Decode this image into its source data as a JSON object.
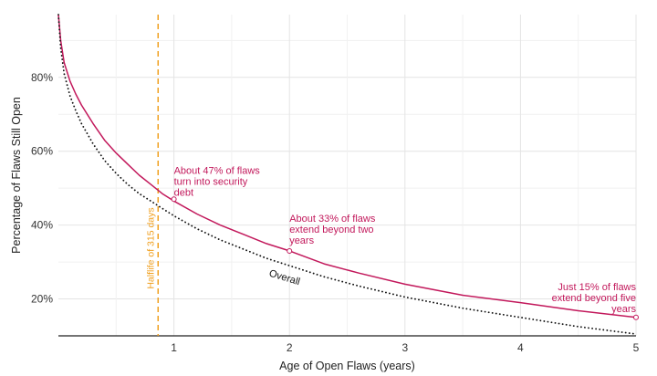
{
  "chart_data": {
    "type": "line",
    "title": "",
    "xlabel": "Age of Open Flaws (years)",
    "ylabel": "Percentage of Flaws Still Open",
    "xlim": [
      0,
      5
    ],
    "ylim": [
      10,
      97
    ],
    "x_ticks": [
      "1",
      "2",
      "3",
      "4",
      "5"
    ],
    "y_ticks": [
      "20%",
      "40%",
      "60%",
      "80%"
    ],
    "grid": true,
    "series": [
      {
        "name": "",
        "color": "#c2185b",
        "style": "solid",
        "x": [
          0,
          0.02,
          0.05,
          0.1,
          0.15,
          0.2,
          0.3,
          0.4,
          0.5,
          0.6,
          0.7,
          0.8,
          0.9,
          1.0,
          1.2,
          1.4,
          1.6,
          1.8,
          2.0,
          2.3,
          2.6,
          3.0,
          3.5,
          4.0,
          4.5,
          5.0
        ],
        "values": [
          97,
          90,
          84,
          79,
          75.5,
          72.5,
          67.5,
          63,
          59.5,
          56.5,
          53.5,
          51,
          48.5,
          46.5,
          43,
          40,
          37.5,
          35,
          33,
          29.5,
          27,
          24,
          21,
          19,
          16.8,
          15
        ]
      },
      {
        "name": "Overall",
        "color": "#111111",
        "style": "dotted",
        "x": [
          0,
          0.02,
          0.05,
          0.1,
          0.15,
          0.2,
          0.3,
          0.4,
          0.5,
          0.6,
          0.7,
          0.8,
          0.9,
          1.0,
          1.2,
          1.4,
          1.6,
          1.8,
          2.0,
          2.3,
          2.6,
          3.0,
          3.5,
          4.0,
          4.5,
          5.0
        ],
        "values": [
          97,
          88,
          81,
          75,
          71,
          67.5,
          62,
          57.5,
          54,
          51,
          48.5,
          46.5,
          44.5,
          42.5,
          39,
          36,
          33.5,
          31,
          29,
          26,
          23.5,
          20.5,
          17.5,
          15,
          12.5,
          10.5
        ]
      }
    ],
    "vline": {
      "x": 0.863,
      "color": "#f0a020",
      "style": "dashed",
      "label": "Halflife of 315 days"
    },
    "annotations": [
      {
        "text": [
          "About 47% of flaws",
          "turn into security",
          "debt"
        ],
        "x": 1.0,
        "y": 47
      },
      {
        "text": [
          "About 33% of flaws",
          "extend beyond two",
          "years"
        ],
        "x": 2.0,
        "y": 33
      },
      {
        "text": [
          "Just 15% of flaws",
          "extend beyond five",
          "years"
        ],
        "x": 5.0,
        "y": 15
      }
    ],
    "series_label": {
      "text": "Overall",
      "x": 1.95,
      "y": 25
    }
  }
}
